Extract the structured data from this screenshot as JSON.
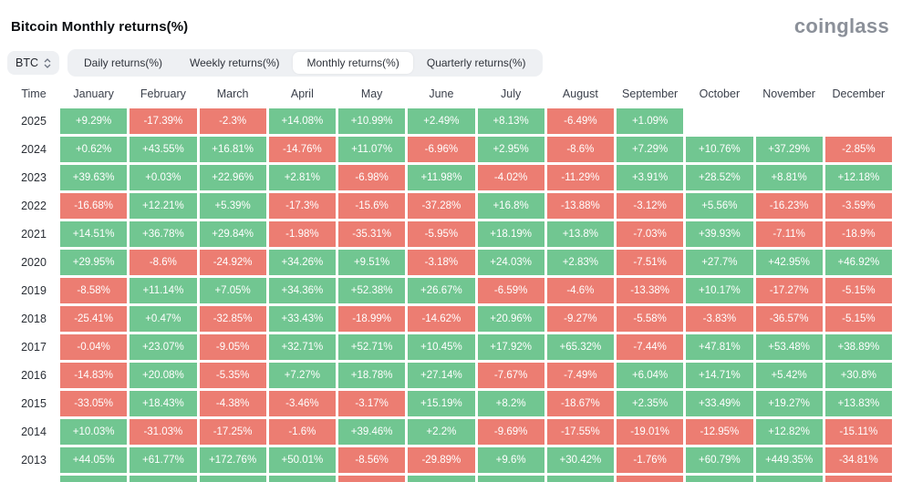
{
  "page": {
    "title": "Bitcoin Monthly returns(%)",
    "brand": "coinglass"
  },
  "controls": {
    "symbol": "BTC",
    "tabs": [
      {
        "label": "Daily returns(%)",
        "active": false
      },
      {
        "label": "Weekly returns(%)",
        "active": false
      },
      {
        "label": "Monthly returns(%)",
        "active": true
      },
      {
        "label": "Quarterly returns(%)",
        "active": false
      }
    ]
  },
  "chart_data": {
    "type": "heatmap",
    "title": "Bitcoin Monthly returns(%)",
    "unit": "percent",
    "columns": [
      "Time",
      "January",
      "February",
      "March",
      "April",
      "May",
      "June",
      "July",
      "August",
      "September",
      "October",
      "November",
      "December"
    ],
    "rows": [
      {
        "year": "2025",
        "values": [
          "+9.29%",
          "-17.39%",
          "-2.3%",
          "+14.08%",
          "+10.99%",
          "+2.49%",
          "+8.13%",
          "-6.49%",
          "+1.09%",
          "",
          "",
          ""
        ]
      },
      {
        "year": "2024",
        "values": [
          "+0.62%",
          "+43.55%",
          "+16.81%",
          "-14.76%",
          "+11.07%",
          "-6.96%",
          "+2.95%",
          "-8.6%",
          "+7.29%",
          "+10.76%",
          "+37.29%",
          "-2.85%"
        ]
      },
      {
        "year": "2023",
        "values": [
          "+39.63%",
          "+0.03%",
          "+22.96%",
          "+2.81%",
          "-6.98%",
          "+11.98%",
          "-4.02%",
          "-11.29%",
          "+3.91%",
          "+28.52%",
          "+8.81%",
          "+12.18%"
        ]
      },
      {
        "year": "2022",
        "values": [
          "-16.68%",
          "+12.21%",
          "+5.39%",
          "-17.3%",
          "-15.6%",
          "-37.28%",
          "+16.8%",
          "-13.88%",
          "-3.12%",
          "+5.56%",
          "-16.23%",
          "-3.59%"
        ]
      },
      {
        "year": "2021",
        "values": [
          "+14.51%",
          "+36.78%",
          "+29.84%",
          "-1.98%",
          "-35.31%",
          "-5.95%",
          "+18.19%",
          "+13.8%",
          "-7.03%",
          "+39.93%",
          "-7.11%",
          "-18.9%"
        ]
      },
      {
        "year": "2020",
        "values": [
          "+29.95%",
          "-8.6%",
          "-24.92%",
          "+34.26%",
          "+9.51%",
          "-3.18%",
          "+24.03%",
          "+2.83%",
          "-7.51%",
          "+27.7%",
          "+42.95%",
          "+46.92%"
        ]
      },
      {
        "year": "2019",
        "values": [
          "-8.58%",
          "+11.14%",
          "+7.05%",
          "+34.36%",
          "+52.38%",
          "+26.67%",
          "-6.59%",
          "-4.6%",
          "-13.38%",
          "+10.17%",
          "-17.27%",
          "-5.15%"
        ]
      },
      {
        "year": "2018",
        "values": [
          "-25.41%",
          "+0.47%",
          "-32.85%",
          "+33.43%",
          "-18.99%",
          "-14.62%",
          "+20.96%",
          "-9.27%",
          "-5.58%",
          "-3.83%",
          "-36.57%",
          "-5.15%"
        ]
      },
      {
        "year": "2017",
        "values": [
          "-0.04%",
          "+23.07%",
          "-9.05%",
          "+32.71%",
          "+52.71%",
          "+10.45%",
          "+17.92%",
          "+65.32%",
          "-7.44%",
          "+47.81%",
          "+53.48%",
          "+38.89%"
        ]
      },
      {
        "year": "2016",
        "values": [
          "-14.83%",
          "+20.08%",
          "-5.35%",
          "+7.27%",
          "+18.78%",
          "+27.14%",
          "-7.67%",
          "-7.49%",
          "+6.04%",
          "+14.71%",
          "+5.42%",
          "+30.8%"
        ]
      },
      {
        "year": "2015",
        "values": [
          "-33.05%",
          "+18.43%",
          "-4.38%",
          "-3.46%",
          "-3.17%",
          "+15.19%",
          "+8.2%",
          "-18.67%",
          "+2.35%",
          "+33.49%",
          "+19.27%",
          "+13.83%"
        ]
      },
      {
        "year": "2014",
        "values": [
          "+10.03%",
          "-31.03%",
          "-17.25%",
          "-1.6%",
          "+39.46%",
          "+2.2%",
          "-9.69%",
          "-17.55%",
          "-19.01%",
          "-12.95%",
          "+12.82%",
          "-15.11%"
        ]
      },
      {
        "year": "2013",
        "values": [
          "+44.05%",
          "+61.77%",
          "+172.76%",
          "+50.01%",
          "-8.56%",
          "-29.89%",
          "+9.6%",
          "+30.42%",
          "-1.76%",
          "+60.79%",
          "+449.35%",
          "-34.81%"
        ]
      }
    ],
    "partial_next_row_colors": [
      "pos",
      "pos",
      "pos",
      "pos",
      "neg",
      "pos",
      "pos",
      "pos",
      "neg",
      "pos",
      "pos",
      "neg"
    ],
    "color_legend": {
      "positive": "#71C691",
      "negative": "#EC7D72"
    }
  }
}
